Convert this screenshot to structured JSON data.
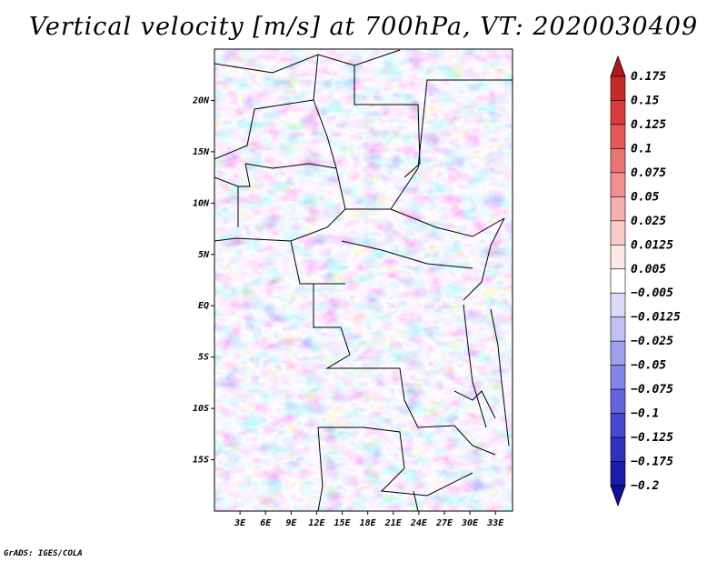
{
  "chart_data": {
    "type": "heatmap",
    "title": "Vertical velocity [m/s] at 700hPa, VT: 2020030409",
    "xlabel": "",
    "ylabel": "",
    "x_range_deg_lon": [
      0,
      35
    ],
    "y_range_deg_lat": [
      -20,
      25
    ],
    "x_ticks": [
      "3E",
      "6E",
      "9E",
      "12E",
      "15E",
      "18E",
      "21E",
      "24E",
      "27E",
      "30E",
      "33E"
    ],
    "y_ticks": [
      "20N",
      "15N",
      "10N",
      "5N",
      "EQ",
      "5S",
      "10S",
      "15S"
    ],
    "colorbar": {
      "levels": [
        "0.175",
        "0.15",
        "0.125",
        "0.1",
        "0.075",
        "0.05",
        "0.025",
        "0.0125",
        "0.005",
        "−0.005",
        "−0.0125",
        "−0.025",
        "−0.05",
        "−0.075",
        "−0.1",
        "−0.125",
        "−0.175",
        "−0.2"
      ],
      "colors": [
        "#b01a1a",
        "#c52a2a",
        "#d83c3c",
        "#e45858",
        "#ea7474",
        "#f09090",
        "#f5b0b0",
        "#f9cccc",
        "#fde8e8",
        "#ffffff",
        "#dcdcf7",
        "#c0c0f2",
        "#a0a0ec",
        "#8484e6",
        "#6464dc",
        "#4848cf",
        "#3030c0",
        "#1c1cac",
        "#10109a"
      ]
    }
  },
  "footer": "GrADS: IGES/COLA"
}
